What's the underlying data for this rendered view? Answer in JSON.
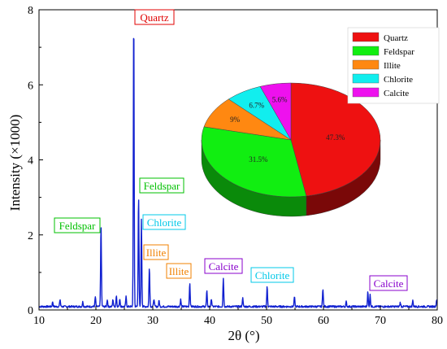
{
  "chart_data": {
    "type": "line",
    "title": "",
    "xlabel": "2θ (°)",
    "ylabel": "Intensity (×1000)",
    "xlim": [
      10,
      80
    ],
    "ylim": [
      0,
      8
    ],
    "xticks": [
      "10",
      "20",
      "30",
      "40",
      "50",
      "60",
      "70",
      "80"
    ],
    "yticks": [
      "0",
      "2",
      "4",
      "6",
      "8"
    ],
    "grid": false,
    "line_color": "#1020d0",
    "baseline": 0.09,
    "peaks": [
      {
        "x": 12.4,
        "y": 0.22
      },
      {
        "x": 13.7,
        "y": 0.28
      },
      {
        "x": 17.7,
        "y": 0.22
      },
      {
        "x": 19.9,
        "y": 0.35
      },
      {
        "x": 20.9,
        "y": 2.25
      },
      {
        "x": 22.0,
        "y": 0.28
      },
      {
        "x": 23.0,
        "y": 0.28
      },
      {
        "x": 23.6,
        "y": 0.38
      },
      {
        "x": 24.2,
        "y": 0.3
      },
      {
        "x": 25.3,
        "y": 0.35
      },
      {
        "x": 26.65,
        "y": 7.9
      },
      {
        "x": 27.5,
        "y": 3.05
      },
      {
        "x": 28.0,
        "y": 2.4
      },
      {
        "x": 29.4,
        "y": 1.15
      },
      {
        "x": 30.2,
        "y": 0.3
      },
      {
        "x": 31.1,
        "y": 0.25
      },
      {
        "x": 34.9,
        "y": 0.28
      },
      {
        "x": 36.5,
        "y": 0.72
      },
      {
        "x": 39.5,
        "y": 0.5
      },
      {
        "x": 40.3,
        "y": 0.3
      },
      {
        "x": 42.4,
        "y": 0.85
      },
      {
        "x": 45.8,
        "y": 0.32
      },
      {
        "x": 50.1,
        "y": 0.62
      },
      {
        "x": 54.9,
        "y": 0.35
      },
      {
        "x": 59.9,
        "y": 0.58
      },
      {
        "x": 64.0,
        "y": 0.22
      },
      {
        "x": 67.8,
        "y": 0.48
      },
      {
        "x": 68.2,
        "y": 0.4
      },
      {
        "x": 73.5,
        "y": 0.2
      },
      {
        "x": 75.7,
        "y": 0.25
      },
      {
        "x": 79.9,
        "y": 0.28
      }
    ],
    "annotations": [
      {
        "text": "Quartz",
        "x": 26.65,
        "y": 7.9,
        "color": "#e00000"
      },
      {
        "text": "Feldspar",
        "x": 28.0,
        "y": 3.3,
        "color": "#00c000"
      },
      {
        "text": "Chlorite",
        "x": 28.6,
        "y": 2.3,
        "color": "#00c8e8"
      },
      {
        "text": "Illite",
        "x": 29.9,
        "y": 1.55,
        "color": "#f08000"
      },
      {
        "text": "Feldspar",
        "x": 20.9,
        "y": 2.25,
        "color": "#00c000"
      },
      {
        "text": "Illite",
        "x": 35.0,
        "y": 1.0,
        "color": "#f08000"
      },
      {
        "text": "Calcite",
        "x": 42.4,
        "y": 1.05,
        "color": "#8800cc"
      },
      {
        "text": "Chlorite",
        "x": 50.2,
        "y": 0.85,
        "color": "#00c8e8"
      },
      {
        "text": "Calcite",
        "x": 68.5,
        "y": 0.65,
        "color": "#8800cc"
      }
    ],
    "pie": {
      "type": "pie",
      "legend_position": "top-right",
      "slices": [
        {
          "name": "Quartz",
          "value": 47.3,
          "label": "47.3%",
          "color": "#ee1111",
          "side": "#7a0808"
        },
        {
          "name": "Feldspar",
          "value": 31.5,
          "label": "31.5%",
          "color": "#11ee11",
          "side": "#0a8a0a"
        },
        {
          "name": "Illite",
          "value": 9.0,
          "label": "9%",
          "color": "#ff8811",
          "side": "#995000"
        },
        {
          "name": "Chlorite",
          "value": 6.7,
          "label": "6.7%",
          "color": "#11eeee",
          "side": "#088888"
        },
        {
          "name": "Calcite",
          "value": 5.6,
          "label": "5.6%",
          "color": "#ee11ee",
          "side": "#880888"
        }
      ]
    }
  }
}
